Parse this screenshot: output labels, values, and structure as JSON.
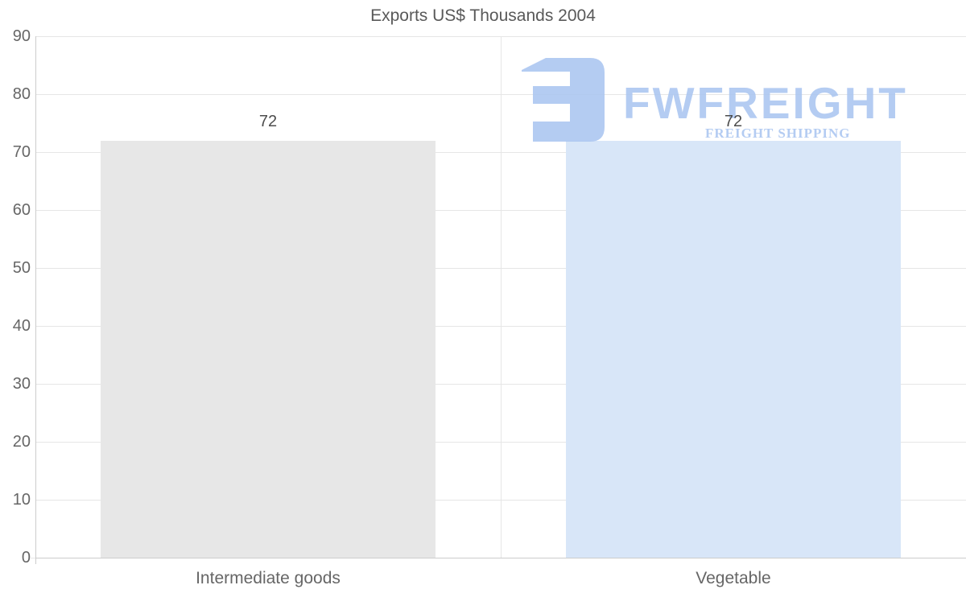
{
  "chart_data": {
    "type": "bar",
    "title": "Exports US$ Thousands 2004",
    "categories": [
      "Intermediate goods",
      "Vegetable"
    ],
    "values": [
      72,
      72
    ],
    "data_labels": [
      "72",
      "72"
    ],
    "xlabel": "",
    "ylabel": "",
    "ylim": [
      0,
      90
    ],
    "ytick_interval": 10,
    "yticks": [
      "0",
      "10",
      "20",
      "30",
      "40",
      "50",
      "60",
      "70",
      "80",
      "90"
    ],
    "grid": true,
    "legend": "none",
    "bar_colors": [
      "#e7e7e7",
      "#d8e6f8"
    ]
  },
  "watermark": {
    "brand": "FWFREIGHT",
    "tagline": "FREIGHT SHIPPING",
    "color": "#a8c4f0"
  },
  "style": {
    "background": "#ffffff",
    "title_color": "#595959",
    "axis_label_color": "#666666",
    "value_label_color": "#4d4d4d",
    "gridline_color": "#e6e6e6",
    "axis_line_color": "#cccccc"
  }
}
